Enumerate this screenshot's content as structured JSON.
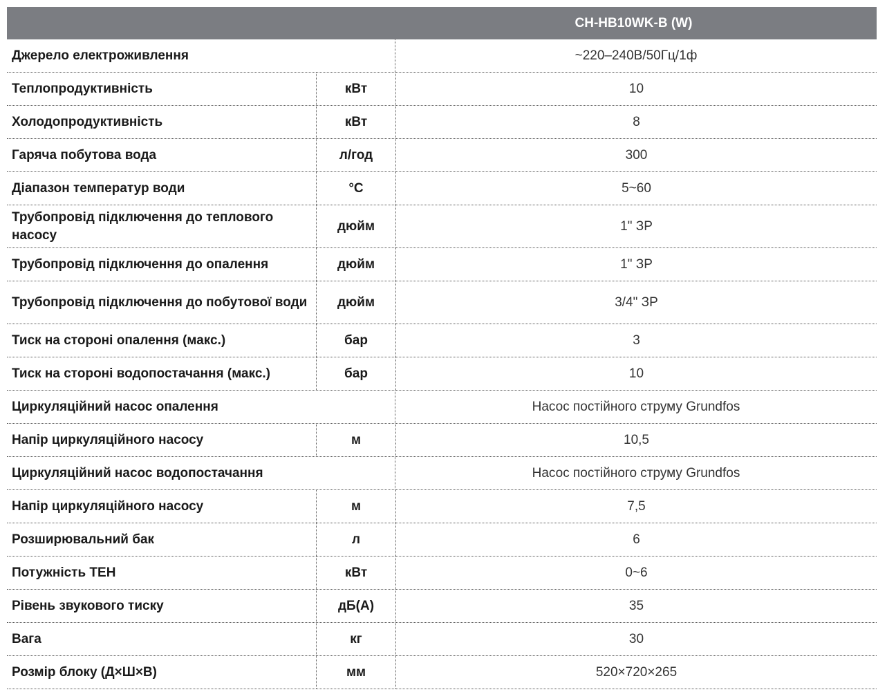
{
  "header": {
    "model": "CH-HB10WK-B (W)"
  },
  "rows": [
    {
      "param": "Джерело електроживлення",
      "unit": "",
      "value": "~220–240В/50Гц/1ф",
      "span": true
    },
    {
      "param": "Теплопродуктивність",
      "unit": "кВт",
      "value": "10"
    },
    {
      "param": "Холодопродуктивність",
      "unit": "кВт",
      "value": "8"
    },
    {
      "param": "Гаряча побутова вода",
      "unit": "л/год",
      "value": "300"
    },
    {
      "param": "Діапазон температур води",
      "unit": "°C",
      "value": "5~60"
    },
    {
      "param": "Трубопровід підключення до теплового насосу",
      "unit": "дюйм",
      "value": "1\" ЗР",
      "tall": true
    },
    {
      "param": "Трубопровід підключення до опалення",
      "unit": "дюйм",
      "value": "1\" ЗР"
    },
    {
      "param": "Трубопровід підключення до побутової води",
      "unit": "дюйм",
      "value": "3/4\" ЗР",
      "tall": true
    },
    {
      "param": "Тиск на стороні опалення (макс.)",
      "unit": "бар",
      "value": "3"
    },
    {
      "param": "Тиск на стороні водопостачання (макс.)",
      "unit": "бар",
      "value": "10"
    },
    {
      "param": "Циркуляційний насос опалення",
      "unit": "",
      "value": "Насос постійного струму Grundfos",
      "span": true
    },
    {
      "param": "Напір циркуляційного насосу",
      "unit": "м",
      "value": "10,5"
    },
    {
      "param": "Циркуляційний насос водопостачання",
      "unit": "",
      "value": "Насос постійного струму Grundfos",
      "span": true
    },
    {
      "param": "Напір циркуляційного насосу",
      "unit": "м",
      "value": "7,5"
    },
    {
      "param": "Розширювальний бак",
      "unit": "л",
      "value": "6"
    },
    {
      "param": "Потужність ТЕН",
      "unit": "кВт",
      "value": "0~6"
    },
    {
      "param": "Рівень звукового тиску",
      "unit": "дБ(А)",
      "value": "35"
    },
    {
      "param": "Вага",
      "unit": "кг",
      "value": "30"
    },
    {
      "param": "Розмір блоку (Д×Ш×В)",
      "unit": "мм",
      "value": "520×720×265"
    }
  ]
}
